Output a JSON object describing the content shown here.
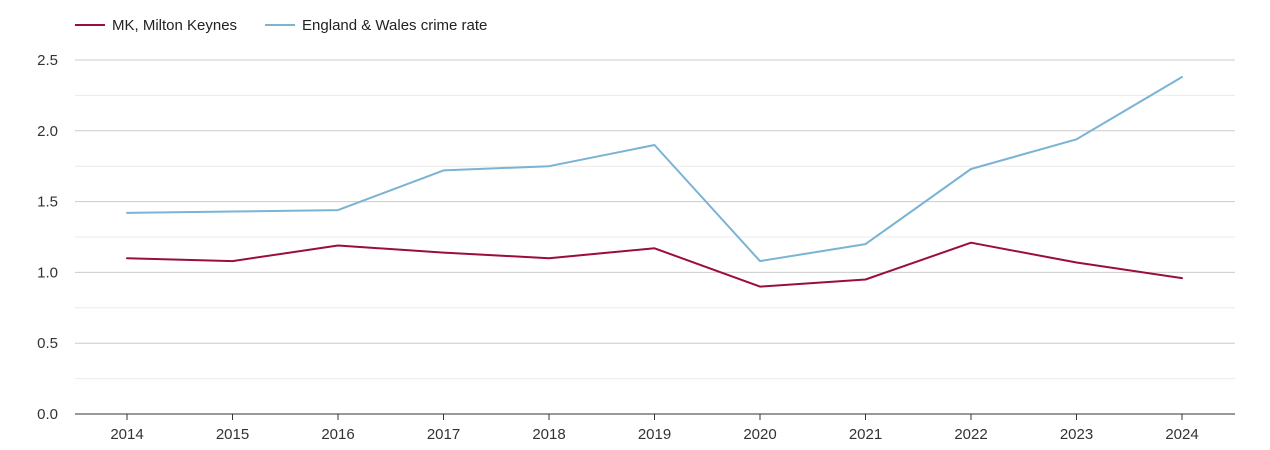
{
  "chart_data": {
    "type": "line",
    "x": [
      "2014",
      "2015",
      "2016",
      "2017",
      "2018",
      "2019",
      "2020",
      "2021",
      "2022",
      "2023",
      "2024"
    ],
    "series": [
      {
        "name": "MK, Milton Keynes",
        "color": "#9b0d3a",
        "values": [
          1.1,
          1.08,
          1.19,
          1.14,
          1.1,
          1.17,
          0.9,
          0.95,
          1.21,
          1.07,
          0.96
        ]
      },
      {
        "name": "England & Wales crime rate",
        "color": "#7ab3d4",
        "values": [
          1.42,
          1.43,
          1.44,
          1.72,
          1.75,
          1.9,
          1.08,
          1.2,
          1.73,
          1.94,
          2.38
        ]
      }
    ],
    "y_ticks": [
      "0.0",
      "0.5",
      "1.0",
      "1.5",
      "2.0",
      "2.5"
    ],
    "ylim": [
      0,
      2.5
    ],
    "grid": true,
    "legend_position": "top-left"
  }
}
